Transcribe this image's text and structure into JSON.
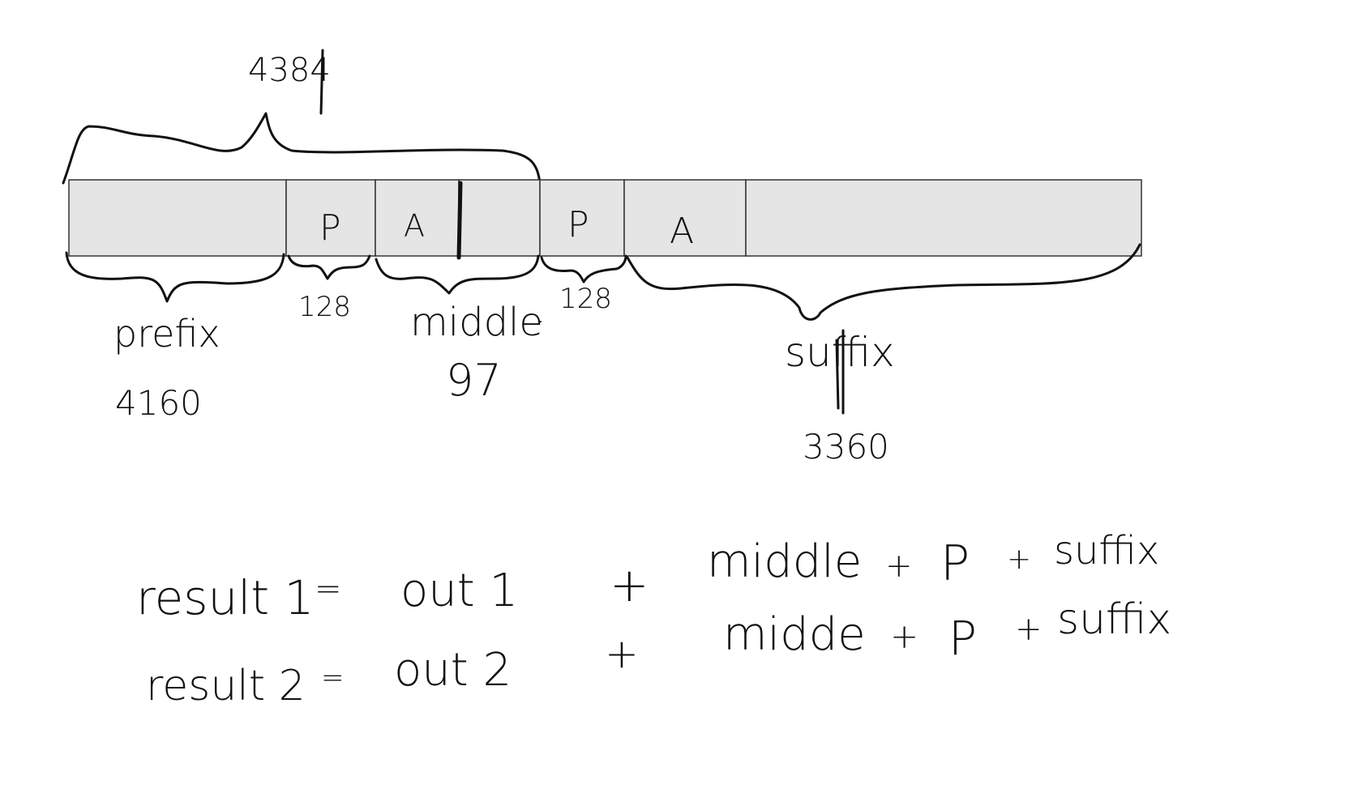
{
  "diagram": {
    "top_brace_label": "4384",
    "segments": [
      {
        "id": "prefix-segment",
        "label": ""
      },
      {
        "id": "p-segment-1",
        "label": "P"
      },
      {
        "id": "a-segment-1",
        "label": "A"
      },
      {
        "id": "middle-gap-segment",
        "label": ""
      },
      {
        "id": "p-segment-2",
        "label": "P"
      },
      {
        "id": "a-segment-2",
        "label": "A"
      },
      {
        "id": "suffix-segment",
        "label": ""
      }
    ],
    "labels": {
      "prefix": "prefix",
      "prefix_value": "4160",
      "p1_value": "128",
      "middle": "middle",
      "middle_dot": ".",
      "middle_value": "97",
      "p2_value": "128",
      "suffix": "suffix",
      "suffix_value": "3360"
    },
    "equations": [
      {
        "lhs": "result 1",
        "eq": "=",
        "term": "out 1",
        "plus1": "+",
        "middle": "middle",
        "plus2": "+",
        "p": "P",
        "plus3": "+",
        "suffix": "suffix"
      },
      {
        "lhs": "result 2",
        "eq": "=",
        "term": "out 2",
        "plus1": "+",
        "middle": "midde",
        "plus2": "+",
        "p": "P",
        "plus3": "+",
        "suffix": "suffix"
      }
    ]
  }
}
